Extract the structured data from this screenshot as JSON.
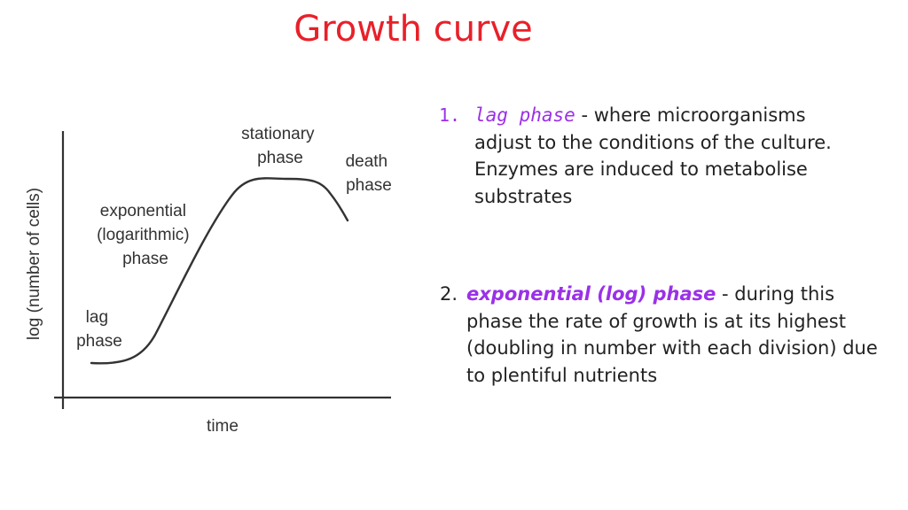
{
  "title": "Growth curve",
  "colors": {
    "title": "#e8202a",
    "term": "#9b30e8",
    "curve": "#333333"
  },
  "graph": {
    "ylabel": "log (number of cells)",
    "xlabel": "time",
    "phase_labels": [
      [
        "lag",
        "phase"
      ],
      [
        "exponential",
        "(logarithmic)",
        "phase"
      ],
      [
        "stationary",
        "phase"
      ],
      [
        "death",
        "phase"
      ]
    ]
  },
  "notes": [
    {
      "number": "1.",
      "term": "lag phase",
      "text": " - where microorganisms adjust to the conditions of the culture. Enzymes are induced to metabolise substrates"
    },
    {
      "number": "2.",
      "term": "exponential (log) phase",
      "text": " - during this phase the rate of growth is at its highest (doubling in number with each division) due to plentiful nutrients"
    }
  ]
}
